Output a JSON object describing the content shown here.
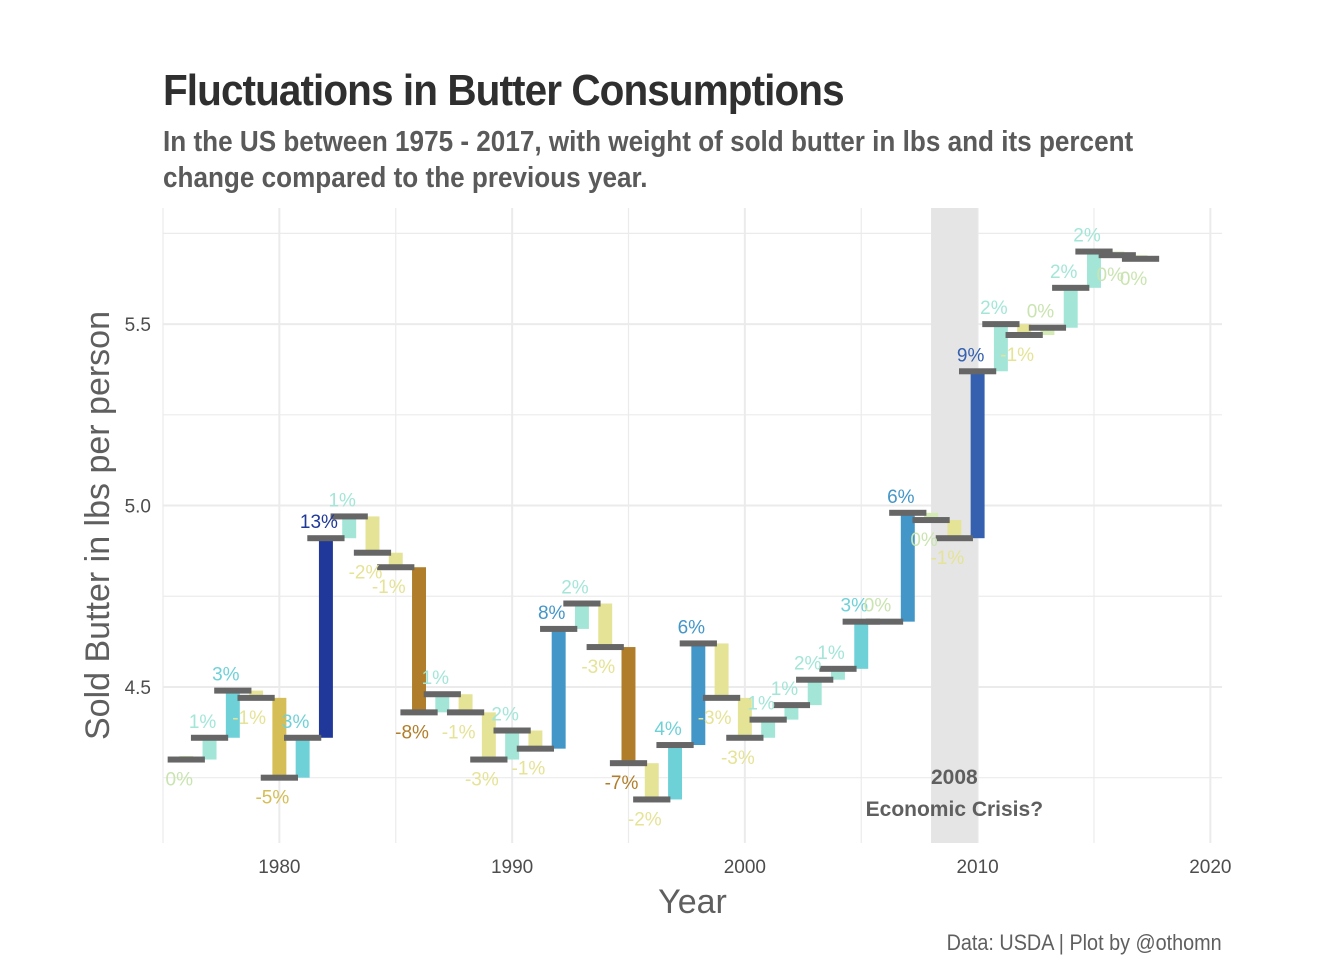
{
  "title": "Fluctuations in Butter Consumptions",
  "subtitle": "In the US between 1975 - 2017, with weight of sold butter in lbs and its percent change compared to the previous year.",
  "caption": "Data: USDA | Plot by @othomn",
  "chart_data": {
    "type": "bar",
    "xlabel": "Year",
    "ylabel": "Sold Butter in lbs per person",
    "xlim": [
      1975,
      2020.5
    ],
    "ylim": [
      4.07,
      5.82
    ],
    "x_ticks": [
      "1980",
      "1990",
      "2000",
      "2010",
      "2020"
    ],
    "y_ticks": [
      "4.5",
      "5.0",
      "5.5"
    ],
    "grid": true,
    "annotation": {
      "year_label": "2008",
      "text": "Economic Crisis?",
      "x_range": [
        2008,
        2010
      ]
    },
    "x": [
      1976,
      1977,
      1978,
      1979,
      1980,
      1981,
      1982,
      1983,
      1984,
      1985,
      1986,
      1987,
      1988,
      1989,
      1990,
      1991,
      1992,
      1993,
      1994,
      1995,
      1996,
      1997,
      1998,
      1999,
      2000,
      2001,
      2002,
      2003,
      2004,
      2005,
      2006,
      2007,
      2008,
      2009,
      2010,
      2011,
      2012,
      2013,
      2014,
      2015,
      2016,
      2017
    ],
    "start": [
      4.31,
      4.3,
      4.36,
      4.49,
      4.47,
      4.25,
      4.36,
      4.91,
      4.97,
      4.87,
      4.83,
      4.43,
      4.48,
      4.43,
      4.3,
      4.38,
      4.33,
      4.66,
      4.73,
      4.61,
      4.29,
      4.19,
      4.34,
      4.62,
      4.47,
      4.36,
      4.41,
      4.45,
      4.52,
      4.55,
      4.68,
      4.68,
      4.98,
      4.96,
      4.91,
      5.37,
      5.5,
      5.47,
      5.49,
      5.6,
      5.7,
      5.69
    ],
    "end": [
      4.3,
      4.36,
      4.49,
      4.47,
      4.25,
      4.36,
      4.91,
      4.97,
      4.87,
      4.83,
      4.43,
      4.48,
      4.43,
      4.3,
      4.38,
      4.33,
      4.66,
      4.73,
      4.61,
      4.29,
      4.19,
      4.34,
      4.62,
      4.47,
      4.36,
      4.41,
      4.45,
      4.52,
      4.55,
      4.68,
      4.68,
      4.98,
      4.96,
      4.91,
      5.37,
      5.5,
      5.47,
      5.49,
      5.6,
      5.7,
      5.69,
      5.68
    ],
    "labels": [
      "0%",
      "1%",
      "3%",
      "-1%",
      "-5%",
      "3%",
      "13%",
      "1%",
      "-2%",
      "-1%",
      "-8%",
      "1%",
      "-1%",
      "-3%",
      "2%",
      "-1%",
      "8%",
      "2%",
      "-3%",
      "-7%",
      "-2%",
      "4%",
      "6%",
      "-3%",
      "-3%",
      "1%",
      "1%",
      "2%",
      "1%",
      "3%",
      "0%",
      "6%",
      "0%",
      "-1%",
      "9%",
      "2%",
      "-1%",
      "0%",
      "2%",
      "2%",
      "0%",
      "0%"
    ],
    "colors": {
      "neg_large": "#b07e2a",
      "neg_medium": "#d4be55",
      "neg_small": "#e5e396",
      "zero": "#d4ecb4",
      "pos_small": "#a3e6d8",
      "pos_medium": "#6fd1d8",
      "pos_large": "#4396c8",
      "pos_xlarge": "#3560b0",
      "pos_max": "#1f3899",
      "step": "#666666",
      "crisis_band": "#e5e5e5"
    }
  }
}
